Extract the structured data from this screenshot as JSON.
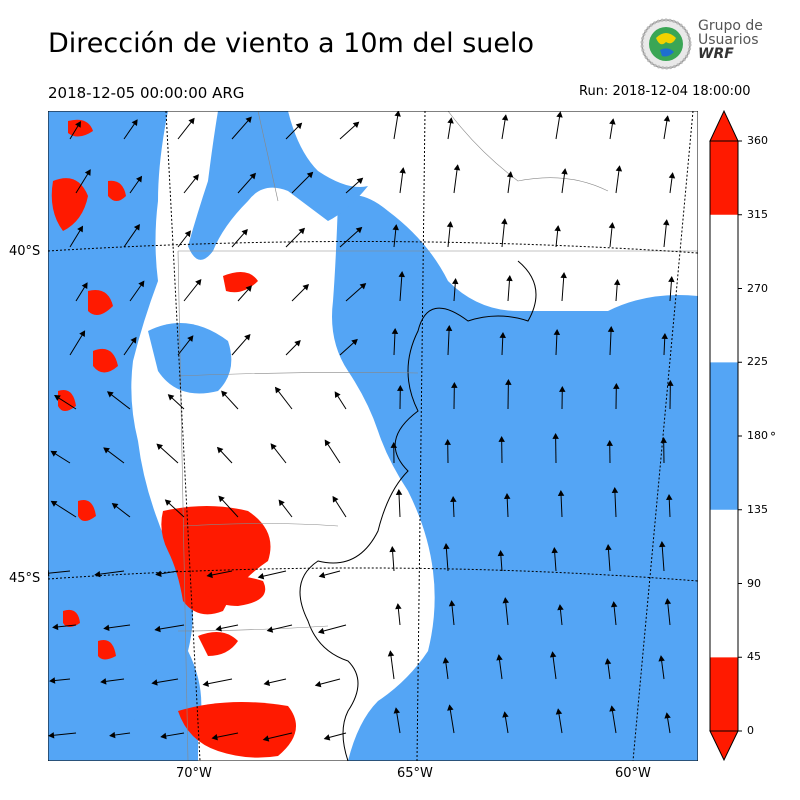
{
  "header": {
    "title": "Dirección de viento a 10m del suelo",
    "valid_time": "2018-12-05 00:00:00 ARG",
    "run_label": "Run: 2018-12-04 18:00:00"
  },
  "logo": {
    "line1": "Grupo de",
    "line2": "Usuarios",
    "line3": "WRF"
  },
  "map": {
    "lat_labels": [
      "40°S",
      "45°S"
    ],
    "lon_labels": [
      "70°W",
      "65°W",
      "60°W"
    ],
    "colors": {
      "red": "#ff1a00",
      "blue": "#54a5f5",
      "white": "#ffffff",
      "border": "#000000"
    }
  },
  "colorbar": {
    "ticks": [
      "360",
      "315",
      "270",
      "225",
      "180",
      "135",
      "90",
      "45",
      "0"
    ],
    "unit": "°",
    "bands": [
      {
        "from": 0,
        "to": 45,
        "color": "#ff1a00"
      },
      {
        "from": 45,
        "to": 135,
        "color": "#ffffff"
      },
      {
        "from": 135,
        "to": 225,
        "color": "#54a5f5"
      },
      {
        "from": 225,
        "to": 315,
        "color": "#ffffff"
      },
      {
        "from": 315,
        "to": 360,
        "color": "#ff1a00"
      }
    ]
  }
}
